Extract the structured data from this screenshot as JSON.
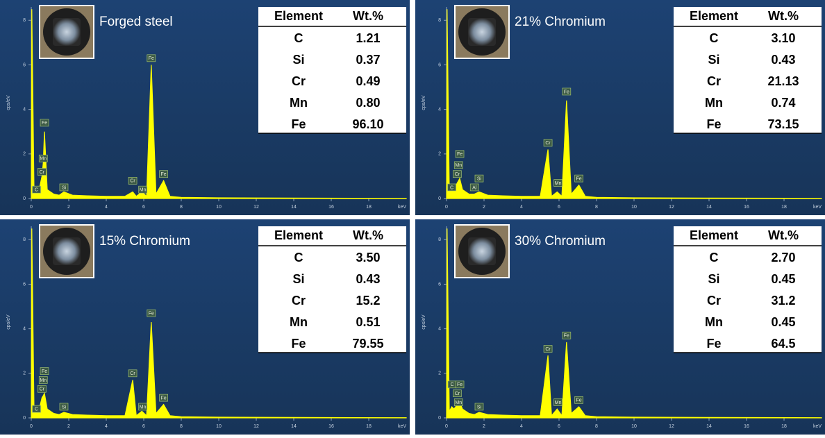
{
  "chart_data": [
    {
      "type": "area",
      "title": "Forged steel",
      "color": "#ffff00",
      "xlabel": "keV",
      "ylabel": "cps/eV",
      "xlim": [
        0,
        20
      ],
      "ylim": [
        0,
        8.6
      ],
      "xticks": [
        0,
        2,
        4,
        6,
        8,
        10,
        12,
        14,
        16,
        18
      ],
      "yticks": [
        0,
        2,
        4,
        6,
        8
      ],
      "x": [
        0,
        0.03,
        0.15,
        0.28,
        0.4,
        0.57,
        0.64,
        0.705,
        0.85,
        1.2,
        1.49,
        1.74,
        2.2,
        3,
        4,
        5,
        5.41,
        5.6,
        5.9,
        6.15,
        6.4,
        6.65,
        7.06,
        7.4,
        8,
        10,
        14,
        20
      ],
      "values": [
        0,
        8.5,
        0.3,
        0.4,
        0.3,
        1.0,
        1.6,
        3.0,
        0.4,
        0.2,
        0.15,
        0.3,
        0.15,
        0.12,
        0.1,
        0.1,
        0.3,
        0.1,
        0.3,
        0.1,
        6.0,
        0.2,
        0.8,
        0.1,
        0.05,
        0.03,
        0.02,
        0.01
      ],
      "annotations": [
        {
          "label": "C",
          "x": 0.28,
          "y": 0.4
        },
        {
          "label": "Cr",
          "x": 0.57,
          "y": 1.2
        },
        {
          "label": "Mn",
          "x": 0.64,
          "y": 1.8
        },
        {
          "label": "Fe",
          "x": 0.705,
          "y": 3.4
        },
        {
          "label": "Si",
          "x": 1.74,
          "y": 0.5
        },
        {
          "label": "Cr",
          "x": 5.41,
          "y": 0.8
        },
        {
          "label": "Mn",
          "x": 5.95,
          "y": 0.4
        },
        {
          "label": "Fe",
          "x": 6.4,
          "y": 6.3
        },
        {
          "label": "Fe",
          "x": 7.06,
          "y": 1.1
        }
      ],
      "table": {
        "columns": [
          "Element",
          "Wt.%"
        ],
        "rows": [
          [
            "C",
            "1.21"
          ],
          [
            "Si",
            "0.37"
          ],
          [
            "Cr",
            "0.49"
          ],
          [
            "Mn",
            "0.80"
          ],
          [
            "Fe",
            "96.10"
          ]
        ]
      }
    },
    {
      "type": "area",
      "title": "21% Chromium",
      "color": "#ffff00",
      "xlabel": "keV",
      "ylabel": "cps/eV",
      "xlim": [
        0,
        20
      ],
      "ylim": [
        0,
        8.6
      ],
      "xticks": [
        0,
        2,
        4,
        6,
        8,
        10,
        12,
        14,
        16,
        18
      ],
      "yticks": [
        0,
        2,
        4,
        6,
        8
      ],
      "x": [
        0,
        0.03,
        0.15,
        0.28,
        0.4,
        0.57,
        0.64,
        0.705,
        0.85,
        1.2,
        1.49,
        1.74,
        2.2,
        3,
        4,
        5,
        5.41,
        5.6,
        5.9,
        6.15,
        6.4,
        6.65,
        7.06,
        7.4,
        8,
        10,
        14,
        20
      ],
      "values": [
        0,
        8.5,
        0.3,
        0.5,
        0.4,
        0.7,
        0.8,
        0.9,
        0.4,
        0.2,
        0.2,
        0.3,
        0.15,
        0.12,
        0.1,
        0.1,
        2.2,
        0.1,
        0.3,
        0.1,
        4.4,
        0.2,
        0.6,
        0.1,
        0.05,
        0.03,
        0.02,
        0.01
      ],
      "annotations": [
        {
          "label": "C",
          "x": 0.28,
          "y": 0.5
        },
        {
          "label": "Cr",
          "x": 0.57,
          "y": 1.1
        },
        {
          "label": "Mn",
          "x": 0.64,
          "y": 1.5
        },
        {
          "label": "Fe",
          "x": 0.705,
          "y": 2.0
        },
        {
          "label": "Al",
          "x": 1.49,
          "y": 0.5
        },
        {
          "label": "Si",
          "x": 1.74,
          "y": 0.9
        },
        {
          "label": "Cr",
          "x": 5.41,
          "y": 2.5
        },
        {
          "label": "Mn",
          "x": 5.95,
          "y": 0.7
        },
        {
          "label": "Fe",
          "x": 6.4,
          "y": 4.8
        },
        {
          "label": "Fe",
          "x": 7.06,
          "y": 0.9
        }
      ],
      "table": {
        "columns": [
          "Element",
          "Wt.%"
        ],
        "rows": [
          [
            "C",
            "3.10"
          ],
          [
            "Si",
            "0.43"
          ],
          [
            "Cr",
            "21.13"
          ],
          [
            "Mn",
            "0.74"
          ],
          [
            "Fe",
            "73.15"
          ]
        ]
      }
    },
    {
      "type": "area",
      "title": "15% Chromium",
      "color": "#ffff00",
      "xlabel": "keV",
      "ylabel": "cps/eV",
      "xlim": [
        0,
        20
      ],
      "ylim": [
        0,
        8.6
      ],
      "xticks": [
        0,
        2,
        4,
        6,
        8,
        10,
        12,
        14,
        16,
        18
      ],
      "yticks": [
        0,
        2,
        4,
        6,
        8
      ],
      "x": [
        0,
        0.03,
        0.15,
        0.28,
        0.4,
        0.57,
        0.64,
        0.705,
        0.85,
        1.2,
        1.49,
        1.74,
        2.2,
        3,
        4,
        5,
        5.41,
        5.6,
        5.9,
        6.15,
        6.4,
        6.65,
        7.06,
        7.4,
        8,
        10,
        14,
        20
      ],
      "values": [
        0,
        8.5,
        0.3,
        0.4,
        0.3,
        0.9,
        1.0,
        1.1,
        0.4,
        0.2,
        0.15,
        0.25,
        0.15,
        0.12,
        0.1,
        0.1,
        1.7,
        0.1,
        0.3,
        0.1,
        4.3,
        0.2,
        0.6,
        0.1,
        0.05,
        0.03,
        0.02,
        0.01
      ],
      "annotations": [
        {
          "label": "C",
          "x": 0.28,
          "y": 0.4
        },
        {
          "label": "Cr",
          "x": 0.57,
          "y": 1.3
        },
        {
          "label": "Mn",
          "x": 0.64,
          "y": 1.7
        },
        {
          "label": "Fe",
          "x": 0.705,
          "y": 2.1
        },
        {
          "label": "Si",
          "x": 1.74,
          "y": 0.5
        },
        {
          "label": "Cr",
          "x": 5.41,
          "y": 2.0
        },
        {
          "label": "Mn",
          "x": 5.95,
          "y": 0.5
        },
        {
          "label": "Fe",
          "x": 6.4,
          "y": 4.7
        },
        {
          "label": "Fe",
          "x": 7.06,
          "y": 0.9
        }
      ],
      "table": {
        "columns": [
          "Element",
          "Wt.%"
        ],
        "rows": [
          [
            "C",
            "3.50"
          ],
          [
            "Si",
            "0.43"
          ],
          [
            "Cr",
            "15.2"
          ],
          [
            "Mn",
            "0.51"
          ],
          [
            "Fe",
            "79.55"
          ]
        ]
      }
    },
    {
      "type": "area",
      "title": "30% Chromium",
      "color": "#ffff00",
      "xlabel": "keV",
      "ylabel": "cps/eV",
      "xlim": [
        0,
        20
      ],
      "ylim": [
        0,
        8.6
      ],
      "xticks": [
        0,
        2,
        4,
        6,
        8,
        10,
        12,
        14,
        16,
        18
      ],
      "yticks": [
        0,
        2,
        4,
        6,
        8
      ],
      "x": [
        0,
        0.03,
        0.15,
        0.28,
        0.4,
        0.57,
        0.64,
        0.705,
        0.85,
        1.2,
        1.49,
        1.74,
        2.2,
        3,
        4,
        5,
        5.41,
        5.6,
        5.9,
        6.15,
        6.4,
        6.65,
        7.06,
        7.4,
        8,
        10,
        14,
        20
      ],
      "values": [
        0,
        8.5,
        0.3,
        0.5,
        0.4,
        0.6,
        0.7,
        0.7,
        0.4,
        0.2,
        0.15,
        0.25,
        0.15,
        0.12,
        0.1,
        0.1,
        2.8,
        0.1,
        0.4,
        0.1,
        3.4,
        0.2,
        0.5,
        0.1,
        0.05,
        0.03,
        0.02,
        0.01
      ],
      "annotations": [
        {
          "label": "C",
          "x": 0.3,
          "y": 1.5
        },
        {
          "label": "Fe",
          "x": 0.705,
          "y": 1.5
        },
        {
          "label": "Cr",
          "x": 0.57,
          "y": 1.1
        },
        {
          "label": "Mn",
          "x": 0.64,
          "y": 0.7
        },
        {
          "label": "Si",
          "x": 1.74,
          "y": 0.5
        },
        {
          "label": "Cr",
          "x": 5.41,
          "y": 3.1
        },
        {
          "label": "Mn",
          "x": 5.95,
          "y": 0.7
        },
        {
          "label": "Fe",
          "x": 6.4,
          "y": 3.7
        },
        {
          "label": "Fe",
          "x": 7.06,
          "y": 0.8
        }
      ],
      "table": {
        "columns": [
          "Element",
          "Wt.%"
        ],
        "rows": [
          [
            "C",
            "2.70"
          ],
          [
            "Si",
            "0.45"
          ],
          [
            "Cr",
            "31.2"
          ],
          [
            "Mn",
            "0.45"
          ],
          [
            "Fe",
            "64.5"
          ]
        ]
      }
    }
  ]
}
